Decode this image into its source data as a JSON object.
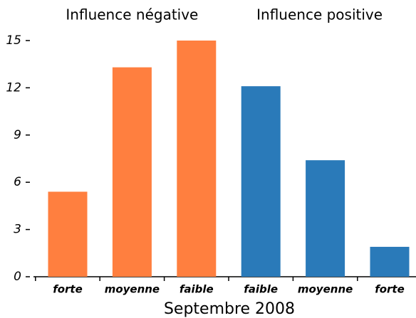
{
  "chart_data": {
    "type": "bar",
    "categories": [
      "forte",
      "moyenne",
      "faible",
      "faible",
      "moyenne",
      "forte"
    ],
    "series": [
      {
        "name": "Influence négative",
        "color": "#ff7f3f",
        "values": [
          5.4,
          13.3,
          15,
          null,
          null,
          null
        ]
      },
      {
        "name": "Influence positive",
        "color": "#2a7ab9",
        "values": [
          null,
          null,
          null,
          12.1,
          7.4,
          1.9
        ]
      }
    ],
    "xlabel": "Septembre 2008",
    "ylim": [
      0,
      15
    ],
    "yticks": [
      0,
      3,
      6,
      9,
      12,
      15
    ]
  }
}
